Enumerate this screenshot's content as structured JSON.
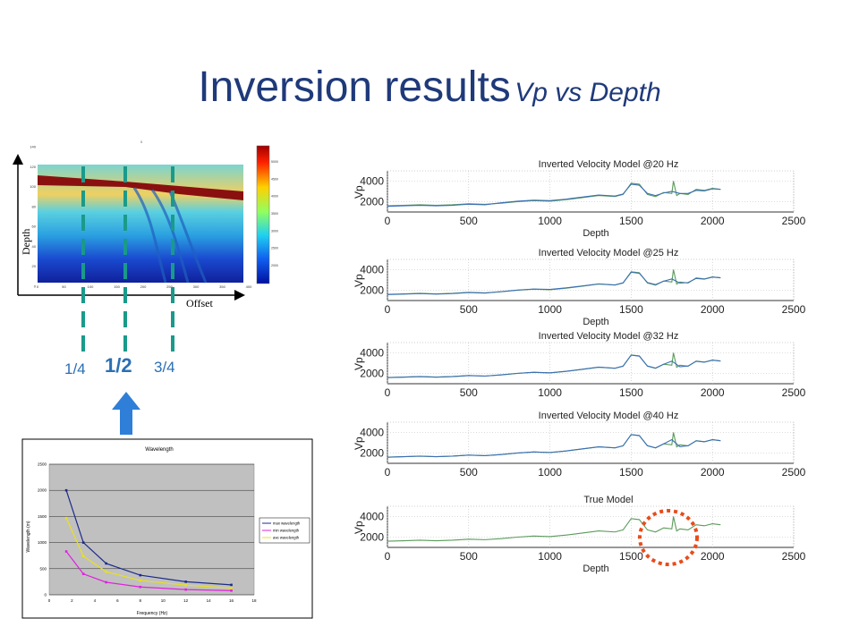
{
  "title": {
    "main": "Inversion results",
    "sub": "Vp vs Depth"
  },
  "velocity_panel": {
    "depth_label": "Depth",
    "offset_label": "Offset",
    "y_ticks": [
      "140",
      "120",
      "100",
      "80",
      "60",
      "40",
      "20",
      "0"
    ],
    "x_ticks": [
      "0",
      "50",
      "100",
      "150",
      "200",
      "250",
      "300",
      "350",
      "400"
    ],
    "colorbar_ticks": [
      "5000",
      "4500",
      "4000",
      "3500",
      "3000",
      "2500",
      "2000"
    ],
    "markers": [
      "1/4",
      "1/2",
      "3/4"
    ],
    "colors": {
      "dash_line": "#1a9a8a",
      "marker_text": "#2a6fb5",
      "arrow": "#2f7fd8"
    }
  },
  "chart_data": [
    {
      "type": "line",
      "title": "Wavelength",
      "xlabel": "Frequency (Hz)",
      "ylabel": "Wavelength (m)",
      "xlim": [
        0,
        18
      ],
      "ylim": [
        0,
        2500
      ],
      "x_ticks": [
        0,
        2,
        4,
        6,
        8,
        10,
        12,
        14,
        16,
        18
      ],
      "y_ticks": [
        0,
        500,
        1000,
        1500,
        2000,
        2500
      ],
      "legend": "right",
      "series": [
        {
          "name": "max wavelength",
          "color": "#1c2a8a",
          "x": [
            1.5,
            3,
            5,
            8,
            12,
            16
          ],
          "values": [
            2000,
            1000,
            600,
            375,
            250,
            190
          ]
        },
        {
          "name": "min wavelength",
          "color": "#e020e0",
          "x": [
            1.5,
            3,
            5,
            8,
            12,
            16
          ],
          "values": [
            830,
            400,
            240,
            150,
            100,
            80
          ]
        },
        {
          "name": "ave wavelength",
          "color": "#e8e020",
          "x": [
            1.5,
            3,
            5,
            8,
            12,
            16
          ],
          "values": [
            1470,
            740,
            440,
            275,
            185,
            130
          ]
        }
      ]
    },
    {
      "type": "line",
      "title": "Inverted Velocity Model @20 Hz",
      "xlabel": "Depth",
      "ylabel": "Vp",
      "xlim": [
        0,
        2500
      ],
      "ylim": [
        1000,
        5000
      ],
      "x_ticks": [
        0,
        500,
        1000,
        1500,
        2000,
        2500
      ],
      "y_ticks": [
        2000,
        4000
      ],
      "series": [
        {
          "color": "#5a9a5a",
          "x": [
            0,
            100,
            200,
            300,
            400,
            500,
            600,
            700,
            800,
            900,
            1000,
            1100,
            1200,
            1300,
            1400,
            1450,
            1500,
            1550,
            1600,
            1650,
            1700,
            1750,
            1760,
            1780,
            1800,
            1850,
            1900,
            1950,
            2000,
            2050
          ],
          "values": [
            1600,
            1650,
            1700,
            1650,
            1700,
            1800,
            1750,
            1850,
            2000,
            2100,
            2050,
            2200,
            2400,
            2600,
            2500,
            2700,
            3800,
            3700,
            2700,
            2500,
            2900,
            2800,
            4000,
            2600,
            2800,
            2700,
            3200,
            3100,
            3300,
            3200
          ]
        },
        {
          "color": "#3a6fb5",
          "x": [
            0,
            100,
            200,
            300,
            400,
            500,
            600,
            700,
            800,
            900,
            1000,
            1100,
            1200,
            1300,
            1400,
            1450,
            1500,
            1550,
            1600,
            1650,
            1700,
            1750,
            1800,
            1850,
            1900,
            1950,
            2000,
            2050
          ],
          "values": [
            1550,
            1600,
            1650,
            1600,
            1650,
            1750,
            1700,
            1900,
            2050,
            2150,
            2100,
            2250,
            2450,
            2650,
            2550,
            2750,
            3700,
            3600,
            2800,
            2600,
            2850,
            3000,
            2800,
            2800,
            3100,
            3050,
            3250,
            3200
          ]
        }
      ]
    },
    {
      "type": "line",
      "title": "Inverted Velocity Model @25 Hz",
      "xlabel": "Depth",
      "ylabel": "Vp",
      "xlim": [
        0,
        2500
      ],
      "ylim": [
        1000,
        5000
      ],
      "x_ticks": [
        0,
        500,
        1000,
        1500,
        2000,
        2500
      ],
      "y_ticks": [
        2000,
        4000
      ],
      "series": [
        {
          "color": "#5a9a5a",
          "x": [
            0,
            100,
            200,
            300,
            400,
            500,
            600,
            700,
            800,
            900,
            1000,
            1100,
            1200,
            1300,
            1400,
            1450,
            1500,
            1550,
            1600,
            1650,
            1700,
            1750,
            1760,
            1780,
            1800,
            1850,
            1900,
            1950,
            2000,
            2050
          ],
          "values": [
            1600,
            1650,
            1700,
            1650,
            1700,
            1800,
            1750,
            1850,
            2000,
            2100,
            2050,
            2200,
            2400,
            2600,
            2500,
            2700,
            3800,
            3700,
            2700,
            2500,
            2900,
            2800,
            4000,
            2600,
            2800,
            2700,
            3200,
            3100,
            3300,
            3200
          ]
        },
        {
          "color": "#3a6fb5",
          "x": [
            0,
            100,
            200,
            300,
            400,
            500,
            600,
            700,
            800,
            900,
            1000,
            1100,
            1200,
            1300,
            1400,
            1450,
            1500,
            1550,
            1600,
            1650,
            1700,
            1750,
            1800,
            1850,
            1900,
            1950,
            2000,
            2050
          ],
          "values": [
            1580,
            1620,
            1680,
            1620,
            1680,
            1780,
            1720,
            1870,
            2020,
            2120,
            2080,
            2230,
            2420,
            2620,
            2520,
            2720,
            3750,
            3650,
            2750,
            2550,
            2880,
            3100,
            2700,
            2750,
            3150,
            3080,
            3280,
            3220
          ]
        }
      ]
    },
    {
      "type": "line",
      "title": "Inverted Velocity Model @32 Hz",
      "xlabel": "Depth",
      "ylabel": "Vp",
      "xlim": [
        0,
        2500
      ],
      "ylim": [
        1000,
        5000
      ],
      "x_ticks": [
        0,
        500,
        1000,
        1500,
        2000,
        2500
      ],
      "y_ticks": [
        2000,
        4000
      ],
      "series": [
        {
          "color": "#5a9a5a",
          "x": [
            0,
            100,
            200,
            300,
            400,
            500,
            600,
            700,
            800,
            900,
            1000,
            1100,
            1200,
            1300,
            1400,
            1450,
            1500,
            1550,
            1600,
            1650,
            1700,
            1750,
            1760,
            1780,
            1800,
            1850,
            1900,
            1950,
            2000,
            2050
          ],
          "values": [
            1600,
            1650,
            1700,
            1650,
            1700,
            1800,
            1750,
            1850,
            2000,
            2100,
            2050,
            2200,
            2400,
            2600,
            2500,
            2700,
            3800,
            3700,
            2700,
            2500,
            2900,
            2800,
            4000,
            2600,
            2800,
            2700,
            3200,
            3100,
            3300,
            3200
          ]
        },
        {
          "color": "#3a6fb5",
          "x": [
            0,
            100,
            200,
            300,
            400,
            500,
            600,
            700,
            800,
            900,
            1000,
            1100,
            1200,
            1300,
            1400,
            1450,
            1500,
            1550,
            1600,
            1650,
            1700,
            1750,
            1800,
            1850,
            1900,
            1950,
            2000,
            2050
          ],
          "values": [
            1590,
            1640,
            1690,
            1640,
            1690,
            1790,
            1740,
            1860,
            2010,
            2110,
            2060,
            2210,
            2410,
            2610,
            2510,
            2710,
            3780,
            3680,
            2720,
            2520,
            2890,
            3200,
            2650,
            2720,
            3180,
            3090,
            3290,
            3210
          ]
        }
      ]
    },
    {
      "type": "line",
      "title": "Inverted Velocity Model @40 Hz",
      "xlabel": "Depth",
      "ylabel": "Vp",
      "xlim": [
        0,
        2500
      ],
      "ylim": [
        1000,
        5000
      ],
      "x_ticks": [
        0,
        500,
        1000,
        1500,
        2000,
        2500
      ],
      "y_ticks": [
        2000,
        4000
      ],
      "series": [
        {
          "color": "#5a9a5a",
          "x": [
            0,
            100,
            200,
            300,
            400,
            500,
            600,
            700,
            800,
            900,
            1000,
            1100,
            1200,
            1300,
            1400,
            1450,
            1500,
            1550,
            1600,
            1650,
            1700,
            1750,
            1760,
            1780,
            1800,
            1850,
            1900,
            1950,
            2000,
            2050
          ],
          "values": [
            1600,
            1650,
            1700,
            1650,
            1700,
            1800,
            1750,
            1850,
            2000,
            2100,
            2050,
            2200,
            2400,
            2600,
            2500,
            2700,
            3800,
            3700,
            2700,
            2500,
            2900,
            2800,
            4000,
            2600,
            2800,
            2700,
            3200,
            3100,
            3300,
            3200
          ]
        },
        {
          "color": "#3a6fb5",
          "x": [
            0,
            100,
            200,
            300,
            400,
            500,
            600,
            700,
            800,
            900,
            1000,
            1100,
            1200,
            1300,
            1400,
            1450,
            1500,
            1550,
            1600,
            1650,
            1700,
            1750,
            1800,
            1850,
            1900,
            1950,
            2000,
            2050
          ],
          "values": [
            1595,
            1645,
            1695,
            1645,
            1695,
            1795,
            1745,
            1855,
            2005,
            2105,
            2055,
            2205,
            2405,
            2605,
            2505,
            2705,
            3790,
            3690,
            2710,
            2510,
            2895,
            3300,
            2620,
            2710,
            3190,
            3095,
            3295,
            3205
          ]
        }
      ]
    },
    {
      "type": "line",
      "title": "True Model",
      "xlabel": "Depth",
      "ylabel": "Vp",
      "xlim": [
        0,
        2500
      ],
      "ylim": [
        1000,
        5000
      ],
      "x_ticks": [
        0,
        500,
        1000,
        1500,
        2000,
        2500
      ],
      "y_ticks": [
        2000,
        4000
      ],
      "series": [
        {
          "color": "#5a9a5a",
          "x": [
            0,
            100,
            200,
            300,
            400,
            500,
            600,
            700,
            800,
            900,
            1000,
            1100,
            1200,
            1300,
            1400,
            1450,
            1500,
            1550,
            1600,
            1650,
            1700,
            1750,
            1760,
            1780,
            1800,
            1850,
            1900,
            1950,
            2000,
            2050
          ],
          "values": [
            1600,
            1650,
            1700,
            1650,
            1700,
            1800,
            1750,
            1850,
            2000,
            2100,
            2050,
            2200,
            2400,
            2600,
            2500,
            2700,
            3800,
            3700,
            2700,
            2500,
            2900,
            2800,
            4000,
            2600,
            2800,
            2700,
            3200,
            3100,
            3300,
            3200
          ]
        }
      ]
    }
  ]
}
